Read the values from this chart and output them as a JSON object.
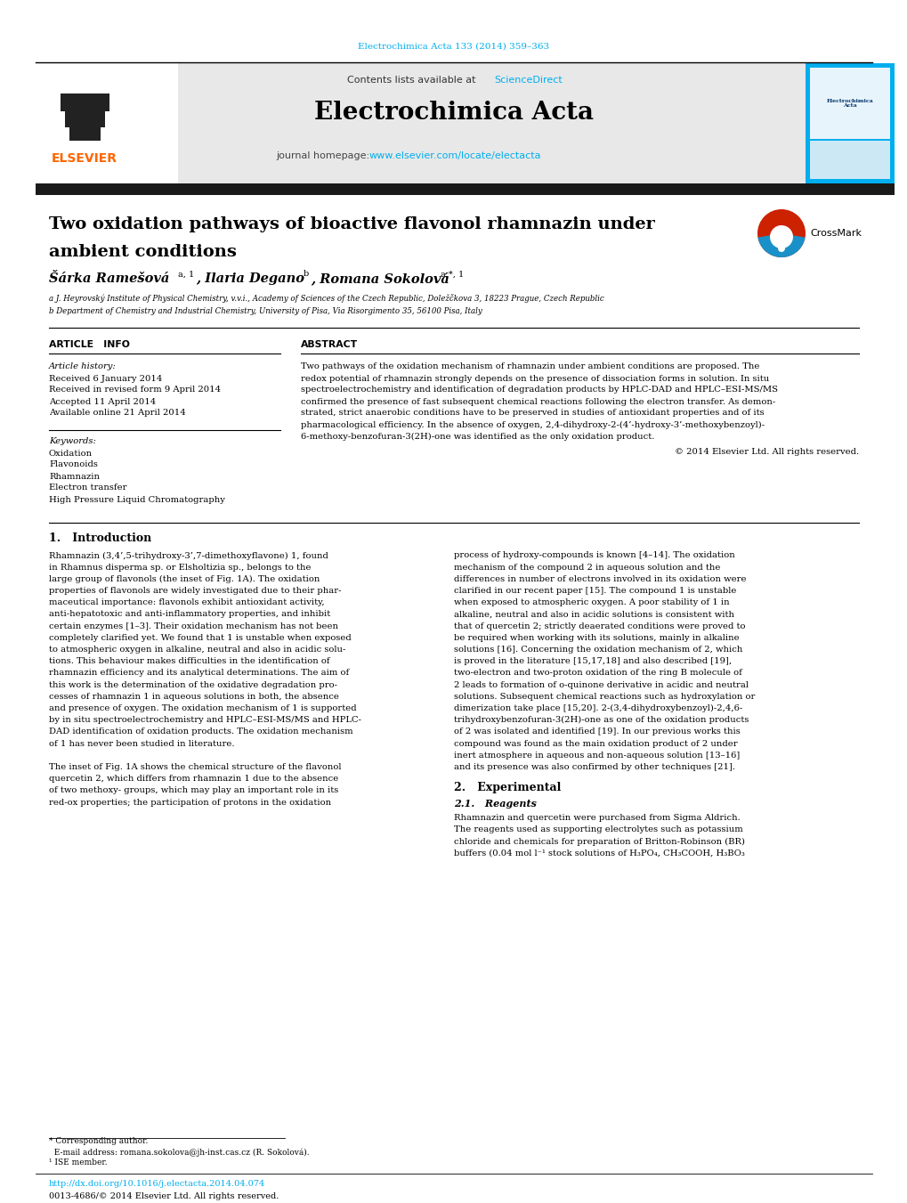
{
  "page_width": 10.2,
  "page_height": 13.51,
  "bg_color": "#ffffff",
  "journal_ref": "Electrochimica Acta 133 (2014) 359–363",
  "journal_ref_color": "#00AEEF",
  "journal_name": "Electrochimica Acta",
  "contents_text": "Contents lists available at ",
  "sciencedirect_text": "ScienceDirect",
  "sciencedirect_color": "#00AEEF",
  "homepage_text": "journal homepage: ",
  "homepage_url": "www.elsevier.com/locate/electacta",
  "homepage_url_color": "#00AEEF",
  "elsevier_color": "#FF6600",
  "header_bg": "#E8E8E8",
  "dark_bar_color": "#1a1a1a",
  "title_line1": "Two oxidation pathways of bioactive flavonol rhamnazin under",
  "title_line2": "ambient conditions",
  "affil_a": "a J. Heyrovský Institute of Physical Chemistry, v.v.i., Academy of Sciences of the Czech Republic, Doležčkova 3, 18223 Prague, Czech Republic",
  "affil_b": "b Department of Chemistry and Industrial Chemistry, University of Pisa, Via Risorgimento 35, 56100 Pisa, Italy",
  "article_info_title": "ARTICLE   INFO",
  "abstract_title": "ABSTRACT",
  "article_history_label": "Article history:",
  "received": "Received 6 January 2014",
  "received_revised": "Received in revised form 9 April 2014",
  "accepted": "Accepted 11 April 2014",
  "available": "Available online 21 April 2014",
  "keywords_label": "Keywords:",
  "keywords": [
    "Oxidation",
    "Flavonoids",
    "Rhamnazin",
    "Electron transfer",
    "High Pressure Liquid Chromatography"
  ],
  "copyright": "© 2014 Elsevier Ltd. All rights reserved.",
  "intro_title": "1.   Introduction",
  "section2_title": "2.   Experimental",
  "section21_title": "2.1.   Reagents",
  "doi_text": "http://dx.doi.org/10.1016/j.electacta.2014.04.074",
  "issn_text": "0013-4686/© 2014 Elsevier Ltd. All rights reserved.",
  "abstract_lines": [
    "Two pathways of the oxidation mechanism of rhamnazin under ambient conditions are proposed. The",
    "redox potential of rhamnazin strongly depends on the presence of dissociation forms in solution. In situ",
    "spectroelectrochemistry and identification of degradation products by HPLC-DAD and HPLC–ESI-MS/MS",
    "confirmed the presence of fast subsequent chemical reactions following the electron transfer. As demon-",
    "strated, strict anaerobic conditions have to be preserved in studies of antioxidant properties and of its",
    "pharmacological efficiency. In the absence of oxygen, 2,4-dihydroxy-2-(4’-hydroxy-3’-methoxybenzoyl)-",
    "6-methoxy-benzofuran-3(2H)-one was identified as the only oxidation product."
  ],
  "intro_col1_lines": [
    "Rhamnazin (3,4’,5-trihydroxy-3’,7-dimethoxyflavone) 1, found",
    "in Rhamnus disperma sp. or Elsholtizia sp., belongs to the",
    "large group of flavonols (the inset of Fig. 1A). The oxidation",
    "properties of flavonols are widely investigated due to their phar-",
    "maceutical importance: flavonols exhibit antioxidant activity,",
    "anti-hepatotoxic and anti-inflammatory properties, and inhibit",
    "certain enzymes [1–3]. Their oxidation mechanism has not been",
    "completely clarified yet. We found that 1 is unstable when exposed",
    "to atmospheric oxygen in alkaline, neutral and also in acidic solu-",
    "tions. This behaviour makes difficulties in the identification of",
    "rhamnazin efficiency and its analytical determinations. The aim of",
    "this work is the determination of the oxidative degradation pro-",
    "cesses of rhamnazin 1 in aqueous solutions in both, the absence",
    "and presence of oxygen. The oxidation mechanism of 1 is supported",
    "by in situ spectroelectrochemistry and HPLC–ESI-MS/MS and HPLC-",
    "DAD identification of oxidation products. The oxidation mechanism",
    "of 1 has never been studied in literature.",
    "",
    "The inset of Fig. 1A shows the chemical structure of the flavonol",
    "quercetin 2, which differs from rhamnazin 1 due to the absence",
    "of two methoxy- groups, which may play an important role in its",
    "red-ox properties; the participation of protons in the oxidation"
  ],
  "intro_col2_lines": [
    "process of hydroxy-compounds is known [4–14]. The oxidation",
    "mechanism of the compound 2 in aqueous solution and the",
    "differences in number of electrons involved in its oxidation were",
    "clarified in our recent paper [15]. The compound 1 is unstable",
    "when exposed to atmospheric oxygen. A poor stability of 1 in",
    "alkaline, neutral and also in acidic solutions is consistent with",
    "that of quercetin 2; strictly deaerated conditions were proved to",
    "be required when working with its solutions, mainly in alkaline",
    "solutions [16]. Concerning the oxidation mechanism of 2, which",
    "is proved in the literature [15,17,18] and also described [19],",
    "two-electron and two-proton oxidation of the ring B molecule of",
    "2 leads to formation of o-quinone derivative in acidic and neutral",
    "solutions. Subsequent chemical reactions such as hydroxylation or",
    "dimerization take place [15,20]. 2-(3,4-dihydroxybenzoyl)-2,4,6-",
    "trihydroxybenzofuran-3(2H)-one as one of the oxidation products",
    "of 2 was isolated and identified [19]. In our previous works this",
    "compound was found as the main oxidation product of 2 under",
    "inert atmosphere in aqueous and non-aqueous solution [13–16]",
    "and its presence was also confirmed by other techniques [21]."
  ],
  "reagent_lines": [
    "Rhamnazin and quercetin were purchased from Sigma Aldrich.",
    "The reagents used as supporting electrolytes such as potassium",
    "chloride and chemicals for preparation of Britton-Robinson (BR)",
    "buffers (0.04 mol l⁻¹ stock solutions of H₃PO₄, CH₃COOH, H₃BO₃"
  ],
  "footer_lines": [
    "* Corresponding author.",
    "  E-mail address: romana.sokolova@jh-inst.cas.cz (R. Sokolová).",
    "¹ ISE member."
  ]
}
